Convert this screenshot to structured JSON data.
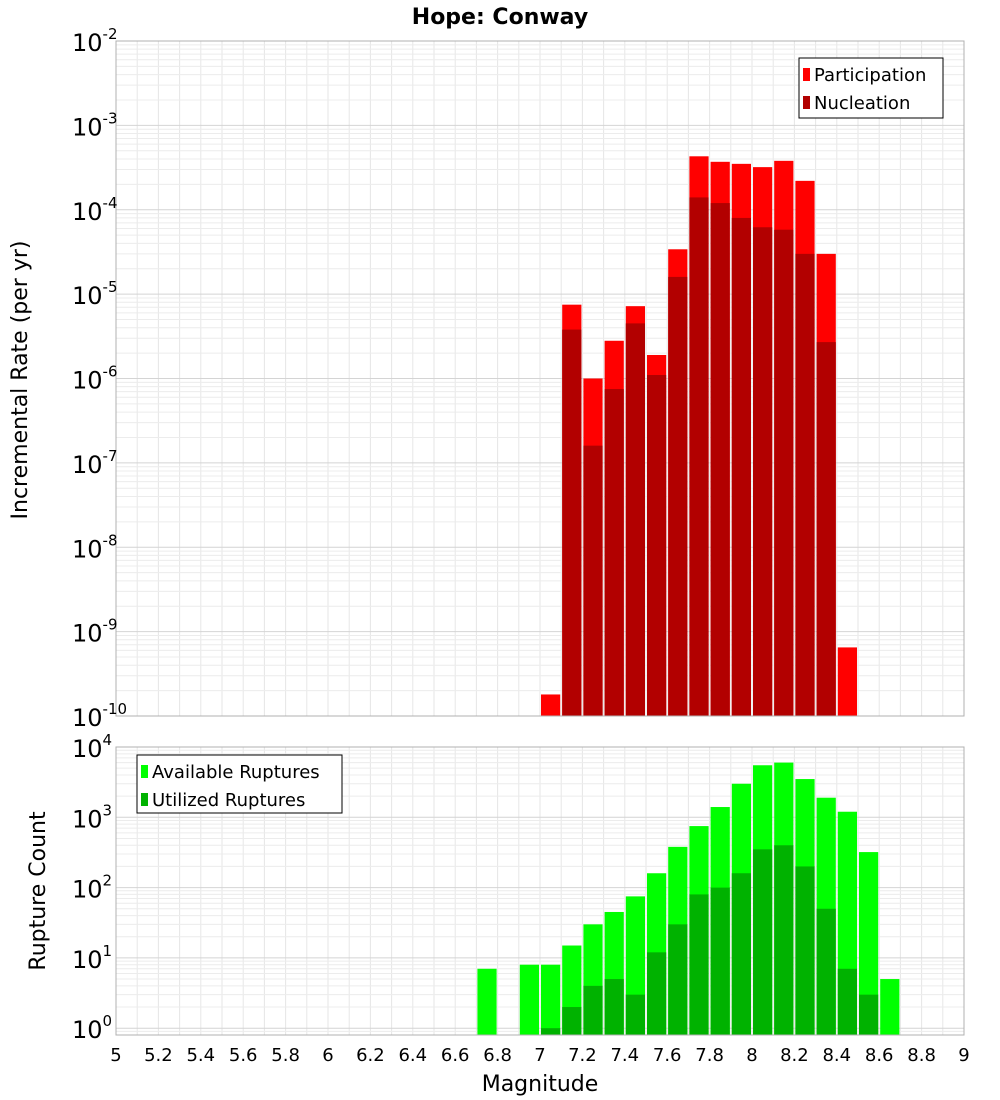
{
  "chart_data": [
    {
      "type": "bar",
      "title": "Hope: Conway",
      "ylabel": "Incremental Rate (per yr)",
      "xlabel": "",
      "yscale": "log",
      "ylim": [
        1e-10,
        0.01
      ],
      "xlim": [
        5,
        9
      ],
      "bin_width": 0.1,
      "grid": true,
      "legend_position": "top-right",
      "y_ticks": [
        {
          "base": "10",
          "exp": "-10",
          "value": 1e-10
        },
        {
          "base": "10",
          "exp": "-9",
          "value": 1e-09
        },
        {
          "base": "10",
          "exp": "-8",
          "value": 1e-08
        },
        {
          "base": "10",
          "exp": "-7",
          "value": 1e-07
        },
        {
          "base": "10",
          "exp": "-6",
          "value": 1e-06
        },
        {
          "base": "10",
          "exp": "-5",
          "value": 1e-05
        },
        {
          "base": "10",
          "exp": "-4",
          "value": 0.0001
        },
        {
          "base": "10",
          "exp": "-3",
          "value": 0.001
        },
        {
          "base": "10",
          "exp": "-2",
          "value": 0.01
        }
      ],
      "x": [
        7.05,
        7.15,
        7.25,
        7.35,
        7.45,
        7.55,
        7.65,
        7.75,
        7.85,
        7.95,
        8.05,
        8.15,
        8.25,
        8.35,
        8.45
      ],
      "series": [
        {
          "name": "Participation",
          "color": "#ff0000",
          "values": [
            1.8e-10,
            7.5e-06,
            1e-06,
            2.8e-06,
            7.2e-06,
            1.9e-06,
            3.4e-05,
            0.00043,
            0.00037,
            0.00035,
            0.00032,
            0.00038,
            0.00022,
            3e-05,
            6.5e-10
          ]
        },
        {
          "name": "Nucleation",
          "color": "#b20000",
          "values": [
            null,
            3.8e-06,
            1.6e-07,
            7.5e-07,
            4.5e-06,
            1.1e-06,
            1.6e-05,
            0.00014,
            0.00012,
            8e-05,
            6.2e-05,
            5.8e-05,
            3e-05,
            2.7e-06,
            null
          ]
        }
      ]
    },
    {
      "type": "bar",
      "title": "",
      "ylabel": "Rupture Count",
      "xlabel": "Magnitude",
      "yscale": "log",
      "ylim": [
        0.8,
        10000
      ],
      "xlim": [
        5,
        9
      ],
      "bin_width": 0.1,
      "grid": true,
      "legend_position": "top-left",
      "x_tick_labels": [
        "5",
        "5.2",
        "5.4",
        "5.6",
        "5.8",
        "6",
        "6.2",
        "6.4",
        "6.6",
        "6.8",
        "7",
        "7.2",
        "7.4",
        "7.6",
        "7.8",
        "8",
        "8.2",
        "8.4",
        "8.6",
        "8.8",
        "9"
      ],
      "y_ticks": [
        {
          "base": "10",
          "exp": "0",
          "value": 1
        },
        {
          "base": "10",
          "exp": "1",
          "value": 10
        },
        {
          "base": "10",
          "exp": "2",
          "value": 100
        },
        {
          "base": "10",
          "exp": "3",
          "value": 1000
        },
        {
          "base": "10",
          "exp": "4",
          "value": 10000
        }
      ],
      "x": [
        6.75,
        6.95,
        7.05,
        7.15,
        7.25,
        7.35,
        7.45,
        7.55,
        7.65,
        7.75,
        7.85,
        7.95,
        8.05,
        8.15,
        8.25,
        8.35,
        8.45,
        8.55,
        8.65
      ],
      "series": [
        {
          "name": "Available Ruptures",
          "color": "#00ff00",
          "values": [
            7,
            8,
            8,
            15,
            30,
            45,
            75,
            160,
            380,
            750,
            1400,
            3000,
            5500,
            6000,
            3500,
            1900,
            1200,
            320,
            5
          ]
        },
        {
          "name": "Utilized Ruptures",
          "color": "#00b200",
          "values": [
            null,
            null,
            1,
            2,
            4,
            5,
            3,
            12,
            30,
            80,
            100,
            160,
            350,
            400,
            200,
            50,
            7,
            3,
            null
          ]
        }
      ]
    }
  ]
}
